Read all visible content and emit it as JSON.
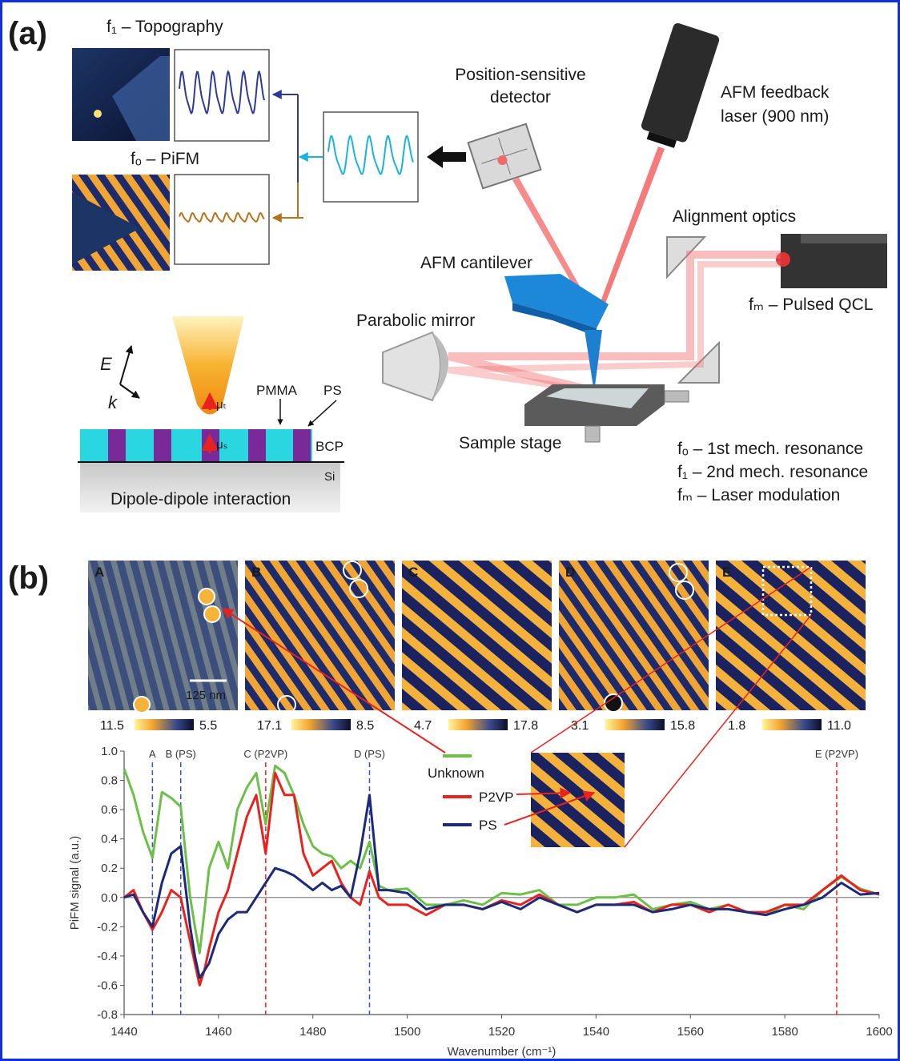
{
  "panel_a": {
    "label": "(a)",
    "topography": "f₁ – Topography",
    "pifm": "fₒ – PiFM",
    "detector": [
      "Position-sensitive",
      "detector"
    ],
    "feedback_laser": [
      "AFM feedback",
      "laser (900 nm)"
    ],
    "alignment_optics": "Alignment optics",
    "cantilever": "AFM cantilever",
    "qcl": "fₘ – Pulsed QCL",
    "parabolic_mirror": "Parabolic mirror",
    "sample_stage": "Sample stage",
    "legend": [
      "fₒ – 1st mech. resonance",
      "f₁ – 2nd mech. resonance",
      "fₘ – Laser modulation"
    ],
    "dipole": {
      "E": "E",
      "k": "k",
      "mu_t": "μₜ",
      "mu_s": "μₛ",
      "pmma": "PMMA",
      "ps": "PS",
      "bcp": "BCP",
      "si": "Si",
      "caption": "Dipole-dipole interaction"
    }
  },
  "panel_b": {
    "label": "(b)",
    "scale_bar": "125 nm",
    "images": [
      {
        "letter": "A",
        "scale_left": "11.5",
        "scale_right": "5.5"
      },
      {
        "letter": "B",
        "scale_left": "17.1",
        "scale_right": "8.5"
      },
      {
        "letter": "C",
        "scale_left": "4.7",
        "scale_right": "17.8"
      },
      {
        "letter": "D",
        "scale_left": "3.1",
        "scale_right": "15.8"
      },
      {
        "letter": "E",
        "scale_left": "1.8",
        "scale_right": "11.0"
      }
    ]
  },
  "chart_data": {
    "type": "line",
    "xlabel": "Wavenumber (cm⁻¹)",
    "ylabel": "PiFM signal (a.u.)",
    "x": [
      1440,
      1442,
      1444,
      1446,
      1448,
      1450,
      1452,
      1454,
      1455,
      1456,
      1457,
      1458,
      1460,
      1462,
      1464,
      1466,
      1468,
      1470,
      1472,
      1474,
      1476,
      1478,
      1480,
      1482,
      1484,
      1486,
      1488,
      1490,
      1492,
      1494,
      1496,
      1500,
      1504,
      1508,
      1512,
      1516,
      1520,
      1524,
      1528,
      1532,
      1536,
      1540,
      1544,
      1548,
      1552,
      1556,
      1560,
      1564,
      1568,
      1572,
      1576,
      1580,
      1584,
      1588,
      1592,
      1596,
      1600
    ],
    "series": [
      {
        "name": "Unknown",
        "color": "#6cc04a",
        "values": [
          0.88,
          0.7,
          0.45,
          0.27,
          0.72,
          0.68,
          0.62,
          0.0,
          -0.2,
          -0.38,
          -0.1,
          0.2,
          0.38,
          0.2,
          0.6,
          0.75,
          0.85,
          0.5,
          0.9,
          0.85,
          0.7,
          0.5,
          0.35,
          0.3,
          0.28,
          0.2,
          0.25,
          0.2,
          0.38,
          0.08,
          0.05,
          0.06,
          -0.05,
          -0.05,
          -0.02,
          -0.05,
          0.03,
          0.02,
          0.05,
          -0.05,
          -0.05,
          0.0,
          0.0,
          0.02,
          -0.08,
          -0.05,
          -0.03,
          -0.08,
          -0.05,
          -0.1,
          -0.12,
          -0.05,
          -0.08,
          0.05,
          0.14,
          0.06,
          0.02
        ]
      },
      {
        "name": "P2VP",
        "color": "#e8231f",
        "values": [
          0.0,
          0.05,
          -0.1,
          -0.22,
          -0.1,
          0.05,
          0.0,
          -0.3,
          -0.45,
          -0.6,
          -0.5,
          -0.35,
          -0.1,
          0.05,
          0.3,
          0.55,
          0.7,
          0.3,
          0.85,
          0.7,
          0.7,
          0.3,
          0.15,
          0.2,
          0.25,
          0.1,
          0.0,
          -0.05,
          0.18,
          0.0,
          -0.05,
          -0.05,
          -0.12,
          -0.05,
          -0.05,
          -0.08,
          -0.02,
          -0.05,
          0.02,
          -0.05,
          -0.1,
          -0.05,
          -0.05,
          -0.03,
          -0.1,
          -0.05,
          -0.05,
          -0.1,
          -0.05,
          -0.1,
          -0.1,
          -0.05,
          -0.05,
          0.05,
          0.15,
          0.05,
          0.02
        ]
      },
      {
        "name": "PS",
        "color": "#1c2a78",
        "values": [
          0.0,
          0.02,
          -0.1,
          -0.2,
          0.1,
          0.3,
          0.35,
          -0.2,
          -0.4,
          -0.55,
          -0.5,
          -0.45,
          -0.25,
          -0.15,
          -0.1,
          -0.1,
          0.0,
          0.1,
          0.2,
          0.18,
          0.15,
          0.1,
          0.05,
          0.1,
          0.05,
          0.08,
          0.0,
          0.3,
          0.7,
          0.05,
          0.05,
          0.03,
          -0.08,
          -0.05,
          -0.05,
          -0.08,
          -0.03,
          -0.08,
          0.0,
          -0.05,
          -0.1,
          -0.05,
          -0.05,
          -0.05,
          -0.1,
          -0.08,
          -0.05,
          -0.08,
          -0.08,
          -0.1,
          -0.12,
          -0.08,
          -0.05,
          0.0,
          0.1,
          0.02,
          0.03
        ]
      }
    ],
    "xlim": [
      1440,
      1600
    ],
    "xticks": [
      1440,
      1460,
      1480,
      1500,
      1520,
      1540,
      1560,
      1580,
      1600
    ],
    "ylim": [
      -0.8,
      1.0
    ],
    "yticks": [
      -0.8,
      -0.6,
      -0.4,
      -0.2,
      {
        "value": 0,
        "label": "0.0"
      },
      0.2,
      0.4,
      0.6,
      0.8,
      {
        "value": 1,
        "label": "1.0"
      }
    ],
    "markers": [
      {
        "x": 1446,
        "label": "A",
        "color": "#3a4fc4"
      },
      {
        "x": 1452,
        "label": "B (PS)",
        "color": "#3a4fc4"
      },
      {
        "x": 1470,
        "label": "C (P2VP)",
        "color": "#e8231f"
      },
      {
        "x": 1492,
        "label": "D (PS)",
        "color": "#3a4fc4"
      },
      {
        "x": 1591,
        "label": "E (P2VP)",
        "color": "#e8231f"
      }
    ]
  }
}
